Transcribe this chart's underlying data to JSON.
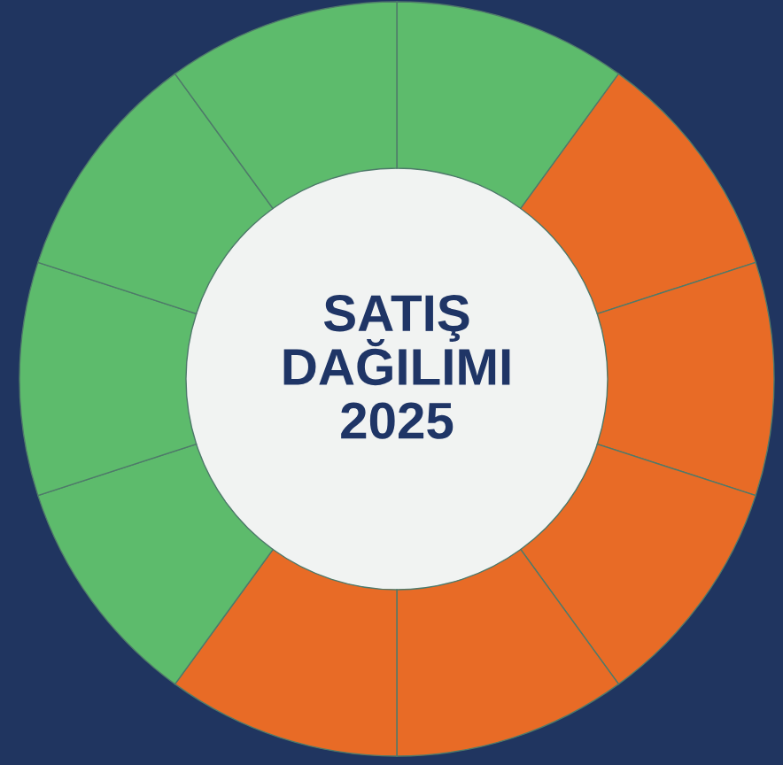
{
  "chart_data": {
    "type": "donut",
    "title": "SATIŞ DAĞILIMI 2025",
    "categories": [
      null,
      null,
      null,
      null,
      null,
      null,
      null,
      null,
      null,
      null
    ],
    "values": [
      10,
      10,
      10,
      10,
      10,
      10,
      10,
      10,
      10,
      10
    ],
    "colors": [
      "#5dbb6c",
      "#e86b26",
      "#e86b26",
      "#e86b26",
      "#e86b26",
      "#e86b26",
      "#5dbb6c",
      "#5dbb6c",
      "#5dbb6c",
      "#5dbb6c"
    ],
    "legend": false
  }
}
